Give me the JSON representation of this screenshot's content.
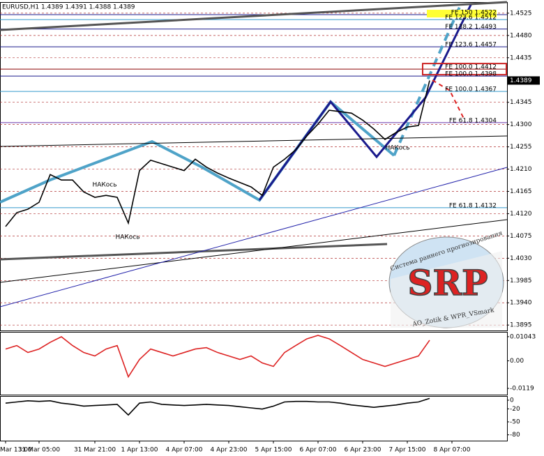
{
  "chart_data": [
    {
      "type": "line",
      "title": "EURUSD,H1  1.4389 1.4391 1.4388 1.4389",
      "categories": [
        "Mar 13:00",
        null,
        null,
        "31 Mar 05:00",
        null,
        null,
        null,
        null,
        "31 Mar 21:00",
        null,
        null,
        null,
        "1 Apr 13:00",
        null,
        null,
        null,
        "4 Apr 07:00",
        null,
        null,
        null,
        "4 Apr 23:00",
        null,
        null,
        null,
        "5 Apr 15:00",
        null,
        null,
        null,
        "6 Apr 07:00",
        null,
        null,
        null,
        "6 Apr 23:00",
        null,
        null,
        null,
        "7 Apr 15:00",
        null,
        null,
        null,
        "8 Apr 07:00"
      ],
      "series": [
        {
          "color": "#000000",
          "values": [
            1.4094,
            1.4122,
            1.4129,
            1.4143,
            1.4199,
            1.4188,
            1.4188,
            1.4164,
            1.4153,
            1.4157,
            1.4153,
            1.4101,
            1.4207,
            1.4228,
            1.4221,
            1.4214,
            1.4207,
            1.423,
            1.4214,
            1.4202,
            1.4192,
            1.4183,
            1.4174,
            1.4157,
            1.4214,
            1.423,
            1.4249,
            1.4277,
            1.4301,
            1.4329,
            1.4326,
            1.4323,
            1.4309,
            1.4291,
            1.427,
            1.4284,
            1.4295,
            1.4298,
            1.4389,
            null,
            null
          ]
        }
      ],
      "ylim": [
        1.3884,
        1.4546
      ],
      "yticks": [
        {
          "value": 1.4525,
          "label": "1.4525"
        },
        {
          "value": 1.448,
          "label": "1.4480"
        },
        {
          "value": 1.4435,
          "label": "1.4435"
        },
        {
          "value": 1.4345,
          "label": "1.4345"
        },
        {
          "value": 1.43,
          "label": "1.4300"
        },
        {
          "value": 1.4255,
          "label": "1.4255"
        },
        {
          "value": 1.421,
          "label": "1.4210"
        },
        {
          "value": 1.4165,
          "label": "1.4165"
        },
        {
          "value": 1.412,
          "label": "1.4120"
        },
        {
          "value": 1.4075,
          "label": "1.4075"
        },
        {
          "value": 1.403,
          "label": "1.4030"
        },
        {
          "value": 1.3985,
          "label": "1.3985"
        },
        {
          "value": 1.394,
          "label": "1.3940"
        },
        {
          "value": 1.3895,
          "label": "1.3895"
        }
      ],
      "last_price": 1.4389,
      "grid": true,
      "levels": [
        {
          "label": "FE 150 1.4522",
          "value": 1.4522,
          "color": "#1a1a8c",
          "highlight": "#ffff33"
        },
        {
          "label": "FE 123.6 1.4512",
          "value": 1.4512,
          "color": "#3399cc"
        },
        {
          "label": "FE 138.2 1.4493",
          "value": 1.4493,
          "color": "#1a1a8c"
        },
        {
          "label": "FE 123.6 1.4457",
          "value": 1.4457,
          "color": "#1a1a8c"
        },
        {
          "label": "FE 100.0 1.4412",
          "value": 1.4412,
          "color": "#8b0000",
          "box": "#cc2222"
        },
        {
          "label": "FE 100.0 1.4398",
          "value": 1.4398,
          "color": "#1a1a8c"
        },
        {
          "label": "FE 100.0 1.4367",
          "value": 1.4367,
          "color": "#3399cc"
        },
        {
          "label": "FE 61.8 1.4304",
          "value": 1.4304,
          "color": "#6633aa"
        },
        {
          "label": "FE 61.8 1.4132",
          "value": 1.4132,
          "color": "#3399cc"
        }
      ],
      "annotations": [
        "НАКось",
        "НАКось",
        "НАКось"
      ],
      "logo": {
        "text": "SRP",
        "top": "Система раннего прогнозирования",
        "bottom": "AO_Zotik & WPR_VSmark"
      }
    },
    {
      "type": "line",
      "series": [
        {
          "color": "#dd2222",
          "values": [
            0.0051,
            0.0066,
            0.0036,
            0.0051,
            0.008,
            0.0104,
            0.0066,
            0.0036,
            0.0021,
            0.0051,
            0.0066,
            -0.0069,
            0.0006,
            0.0051,
            0.0036,
            0.0021,
            0.0036,
            0.0051,
            0.0057,
            0.0036,
            0.0021,
            0.0006,
            0.0021,
            -0.0009,
            -0.0024,
            0.0036,
            0.0066,
            0.0095,
            0.011,
            0.0095,
            0.0066,
            0.0036,
            0.0006,
            -0.0009,
            -0.0024,
            -0.0009,
            0.0006,
            0.0021,
            0.0089,
            null,
            null
          ]
        }
      ],
      "ylim": [
        -0.0146,
        0.0122
      ],
      "yticks": [
        0.01043,
        {
          "value": 0,
          "label": "0.00"
        },
        -0.0119
      ]
    },
    {
      "type": "line",
      "series": [
        {
          "color": "#000000",
          "values": [
            -6.8,
            -4.1,
            -1.4,
            -2.7,
            -1.4,
            -6.8,
            -9.6,
            -13.7,
            -12.3,
            -11,
            -9.6,
            -34.2,
            -6.8,
            -4.1,
            -9.6,
            -11,
            -12.3,
            -11,
            -9.6,
            -11,
            -12.3,
            -15.1,
            -17.8,
            -20.5,
            -13.7,
            -4.1,
            -2.7,
            -2.7,
            -4.1,
            -4.1,
            -6.8,
            -11,
            -13.7,
            -16.4,
            -13.7,
            -11,
            -6.8,
            -4.1,
            4.1,
            null,
            null
          ]
        }
      ],
      "ylim": [
        -93.5,
        8
      ],
      "yticks": [
        0,
        -20,
        -50,
        -80
      ]
    }
  ]
}
